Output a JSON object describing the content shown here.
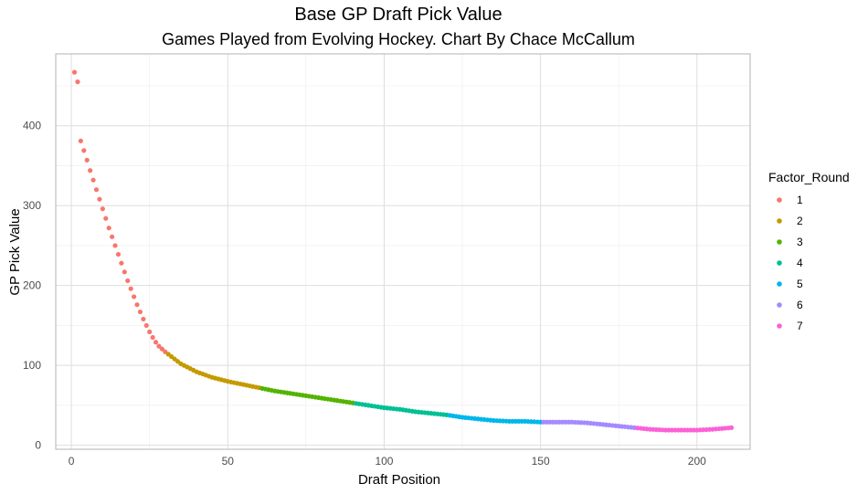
{
  "chart_data": {
    "type": "scatter",
    "title": "Base GP Draft Pick Value",
    "subtitle": "Games Played from Evolving Hockey. Chart By Chace McCallum",
    "xlabel": "Draft Position",
    "ylabel": "GP Pick Value",
    "xlim": [
      -5,
      217
    ],
    "ylim": [
      -5,
      490
    ],
    "x_ticks": [
      0,
      50,
      100,
      150,
      200
    ],
    "y_ticks": [
      0,
      100,
      200,
      300,
      400
    ],
    "grid": true,
    "legend": {
      "title": "Factor_Round",
      "position": "right"
    },
    "series": [
      {
        "name": "1",
        "color": "#F8766D",
        "x_start": 1,
        "x_end": 30
      },
      {
        "name": "2",
        "color": "#C49A00",
        "x_start": 31,
        "x_end": 60
      },
      {
        "name": "3",
        "color": "#53B400",
        "x_start": 61,
        "x_end": 90
      },
      {
        "name": "4",
        "color": "#00C094",
        "x_start": 91,
        "x_end": 120
      },
      {
        "name": "5",
        "color": "#00B6EB",
        "x_start": 121,
        "x_end": 150
      },
      {
        "name": "6",
        "color": "#A58AFF",
        "x_start": 151,
        "x_end": 180
      },
      {
        "name": "7",
        "color": "#FB61D7",
        "x_start": 181,
        "x_end": 211
      }
    ],
    "curve_points": [
      [
        1,
        467
      ],
      [
        2,
        455
      ],
      [
        3,
        381
      ],
      [
        4,
        369
      ],
      [
        5,
        357
      ],
      [
        6,
        344
      ],
      [
        7,
        332
      ],
      [
        8,
        320
      ],
      [
        9,
        308
      ],
      [
        10,
        296
      ],
      [
        11,
        284
      ],
      [
        12,
        272
      ],
      [
        13,
        261
      ],
      [
        14,
        250
      ],
      [
        15,
        239
      ],
      [
        16,
        228
      ],
      [
        17,
        217
      ],
      [
        18,
        206
      ],
      [
        19,
        196
      ],
      [
        20,
        186
      ],
      [
        21,
        176
      ],
      [
        22,
        167
      ],
      [
        23,
        158
      ],
      [
        24,
        150
      ],
      [
        25,
        142
      ],
      [
        26,
        135
      ],
      [
        27,
        129
      ],
      [
        28,
        124
      ],
      [
        30,
        117
      ],
      [
        35,
        102
      ],
      [
        40,
        92
      ],
      [
        45,
        85
      ],
      [
        50,
        80
      ],
      [
        55,
        76
      ],
      [
        60,
        72
      ],
      [
        65,
        68
      ],
      [
        70,
        65
      ],
      [
        75,
        62
      ],
      [
        80,
        59
      ],
      [
        85,
        56
      ],
      [
        90,
        53
      ],
      [
        95,
        50
      ],
      [
        100,
        47
      ],
      [
        105,
        45
      ],
      [
        110,
        42
      ],
      [
        115,
        40
      ],
      [
        120,
        38
      ],
      [
        125,
        35
      ],
      [
        130,
        33
      ],
      [
        135,
        31
      ],
      [
        140,
        30
      ],
      [
        145,
        30
      ],
      [
        150,
        29
      ],
      [
        155,
        29
      ],
      [
        160,
        29
      ],
      [
        165,
        28
      ],
      [
        170,
        26
      ],
      [
        175,
        24
      ],
      [
        180,
        22
      ],
      [
        185,
        20
      ],
      [
        190,
        19
      ],
      [
        195,
        19
      ],
      [
        200,
        19
      ],
      [
        205,
        20
      ],
      [
        211,
        22
      ]
    ]
  }
}
